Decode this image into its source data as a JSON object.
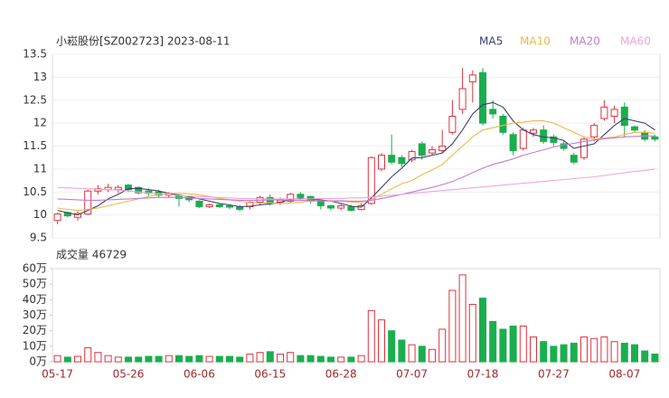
{
  "chart_data": [
    {
      "type": "candlestick",
      "title": "小崧股份[SZ002723] 2023-08-11",
      "categories": [
        "05-17",
        null,
        null,
        null,
        null,
        null,
        null,
        "05-26",
        null,
        null,
        null,
        null,
        null,
        null,
        "06-06",
        null,
        null,
        null,
        null,
        null,
        null,
        "06-15",
        null,
        null,
        null,
        null,
        null,
        null,
        "06-28",
        null,
        null,
        null,
        null,
        null,
        null,
        "07-07",
        null,
        null,
        null,
        null,
        null,
        null,
        "07-18",
        null,
        null,
        null,
        null,
        null,
        null,
        "07-27",
        null,
        null,
        null,
        null,
        null,
        null,
        "08-07",
        null,
        null,
        null
      ],
      "open": [
        9.88,
        10.05,
        9.95,
        10.02,
        10.52,
        10.55,
        10.55,
        10.65,
        10.6,
        10.52,
        10.5,
        10.43,
        10.42,
        10.38,
        10.3,
        10.18,
        10.22,
        10.2,
        10.18,
        10.18,
        10.28,
        10.38,
        10.28,
        10.3,
        10.45,
        10.4,
        10.3,
        10.2,
        10.15,
        10.18,
        10.12,
        10.25,
        11.0,
        11.3,
        11.25,
        11.2,
        11.55,
        11.35,
        11.4,
        11.8,
        12.3,
        12.9,
        13.1,
        12.3,
        12.15,
        11.75,
        11.45,
        11.78,
        11.85,
        11.7,
        11.55,
        11.3,
        11.25,
        11.7,
        12.1,
        12.15,
        12.35,
        11.92,
        11.8,
        11.7
      ],
      "high": [
        10.05,
        10.07,
        10.08,
        10.55,
        10.65,
        10.68,
        10.65,
        10.68,
        10.62,
        10.58,
        10.55,
        10.5,
        10.45,
        10.42,
        10.32,
        10.25,
        10.25,
        10.22,
        10.22,
        10.3,
        10.42,
        10.45,
        10.38,
        10.48,
        10.5,
        10.42,
        10.32,
        10.22,
        10.25,
        10.22,
        10.25,
        11.27,
        11.35,
        11.75,
        11.3,
        11.42,
        11.6,
        11.5,
        11.85,
        12.5,
        13.2,
        13.15,
        13.2,
        12.5,
        12.2,
        11.8,
        11.9,
        11.9,
        11.95,
        11.75,
        11.6,
        11.35,
        11.7,
        12.0,
        12.5,
        12.38,
        12.45,
        11.95,
        11.85,
        11.75
      ],
      "low": [
        9.8,
        9.95,
        9.88,
        10.0,
        10.45,
        10.5,
        10.48,
        10.5,
        10.45,
        10.42,
        10.38,
        10.38,
        10.18,
        10.28,
        10.15,
        10.15,
        10.15,
        10.12,
        10.08,
        10.12,
        10.22,
        10.2,
        10.22,
        10.25,
        10.32,
        10.25,
        10.12,
        10.1,
        10.1,
        10.08,
        10.1,
        10.22,
        10.95,
        11.1,
        11.05,
        11.15,
        11.2,
        11.3,
        11.35,
        11.75,
        12.2,
        12.45,
        11.95,
        12.1,
        11.75,
        11.3,
        11.4,
        11.7,
        11.55,
        11.5,
        11.4,
        11.1,
        11.2,
        11.6,
        12.05,
        12.0,
        11.7,
        11.8,
        11.6,
        11.6
      ],
      "close": [
        10.02,
        9.98,
        10.03,
        10.52,
        10.57,
        10.6,
        10.6,
        10.55,
        10.48,
        10.47,
        10.43,
        10.47,
        10.36,
        10.33,
        10.18,
        10.22,
        10.18,
        10.17,
        10.12,
        10.28,
        10.38,
        10.25,
        10.32,
        10.45,
        10.38,
        10.3,
        10.2,
        10.15,
        10.2,
        10.1,
        10.2,
        11.25,
        11.3,
        11.15,
        11.12,
        11.38,
        11.3,
        11.42,
        11.5,
        12.15,
        12.75,
        13.05,
        12.0,
        12.2,
        11.8,
        11.4,
        11.85,
        11.85,
        11.6,
        11.58,
        11.45,
        11.15,
        11.65,
        11.95,
        12.35,
        12.3,
        11.95,
        11.85,
        11.65,
        11.65
      ],
      "up_color": "#e0323c",
      "down_color": "#1aae4e",
      "series": [
        {
          "name": "MA5",
          "color": "#3a3f6e",
          "values": [
            10.1,
            10.05,
            10.0,
            10.1,
            10.2,
            10.35,
            10.45,
            10.57,
            10.58,
            10.55,
            10.52,
            10.47,
            10.43,
            10.4,
            10.35,
            10.3,
            10.25,
            10.22,
            10.18,
            10.19,
            10.22,
            10.24,
            10.27,
            10.34,
            10.36,
            10.34,
            10.33,
            10.3,
            10.25,
            10.19,
            10.17,
            10.37,
            10.6,
            10.83,
            11.02,
            11.24,
            11.25,
            11.3,
            11.35,
            11.55,
            11.85,
            12.2,
            12.4,
            12.45,
            12.35,
            12.05,
            11.85,
            11.75,
            11.7,
            11.68,
            11.62,
            11.45,
            11.5,
            11.55,
            11.75,
            11.95,
            12.1,
            12.05,
            12.0,
            11.85
          ]
        },
        {
          "name": "MA10",
          "color": "#f0b848",
          "values": [
            10.15,
            10.12,
            10.1,
            10.12,
            10.15,
            10.2,
            10.25,
            10.3,
            10.35,
            10.4,
            10.45,
            10.47,
            10.47,
            10.46,
            10.44,
            10.4,
            10.36,
            10.33,
            10.3,
            10.27,
            10.26,
            10.26,
            10.25,
            10.26,
            10.28,
            10.3,
            10.31,
            10.3,
            10.3,
            10.28,
            10.27,
            10.34,
            10.45,
            10.57,
            10.68,
            10.75,
            10.88,
            10.98,
            11.1,
            11.3,
            11.5,
            11.7,
            11.85,
            11.9,
            11.95,
            12.0,
            12.02,
            12.05,
            12.05,
            12.0,
            11.9,
            11.8,
            11.7,
            11.65,
            11.68,
            11.7,
            11.75,
            11.8,
            11.8,
            11.78
          ]
        },
        {
          "name": "MA20",
          "color": "#c47ad6",
          "values": [
            10.35,
            10.34,
            10.33,
            10.32,
            10.32,
            10.33,
            10.34,
            10.35,
            10.36,
            10.37,
            10.38,
            10.38,
            10.38,
            10.37,
            10.36,
            10.35,
            10.34,
            10.33,
            10.32,
            10.32,
            10.32,
            10.33,
            10.33,
            10.32,
            10.32,
            10.31,
            10.31,
            10.31,
            10.31,
            10.3,
            10.3,
            10.32,
            10.36,
            10.4,
            10.45,
            10.5,
            10.55,
            10.6,
            10.66,
            10.73,
            10.82,
            10.92,
            11.02,
            11.1,
            11.16,
            11.22,
            11.3,
            11.36,
            11.42,
            11.48,
            11.53,
            11.56,
            11.6,
            11.63,
            11.66,
            11.68,
            11.7,
            11.71,
            11.72,
            11.72
          ]
        },
        {
          "name": "MA60",
          "color": "#f2a6d6",
          "values": [
            10.6,
            10.59,
            10.58,
            10.57,
            10.56,
            10.55,
            10.54,
            10.52,
            10.5,
            10.48,
            10.46,
            10.44,
            10.42,
            10.41,
            10.4,
            10.39,
            10.38,
            10.37,
            10.36,
            10.36,
            10.35,
            10.35,
            10.35,
            10.35,
            10.35,
            10.35,
            10.36,
            10.36,
            10.36,
            10.37,
            10.37,
            10.39,
            10.41,
            10.43,
            10.45,
            10.47,
            10.49,
            10.51,
            10.53,
            10.55,
            10.57,
            10.59,
            10.61,
            10.63,
            10.65,
            10.67,
            10.69,
            10.71,
            10.73,
            10.75,
            10.77,
            10.79,
            10.81,
            10.83,
            10.86,
            10.89,
            10.92,
            10.95,
            10.97,
            11.0
          ]
        }
      ],
      "ylim": [
        9.5,
        13.5
      ],
      "yticks": [
        9.5,
        10,
        10.5,
        11,
        11.5,
        12,
        12.5,
        13,
        13.5
      ],
      "grid": true
    },
    {
      "type": "bar",
      "title": "成交量 46729",
      "values": [
        4,
        3,
        3.5,
        9,
        6,
        4,
        3,
        3,
        3,
        3.5,
        3.5,
        4,
        4,
        3.5,
        4,
        3.5,
        3.5,
        3.5,
        3,
        5,
        6,
        6.5,
        5,
        6,
        4,
        4,
        3.5,
        3,
        3,
        3,
        4,
        33,
        27,
        20,
        14,
        11,
        10,
        8,
        21,
        46,
        56,
        37,
        41,
        26,
        21,
        23,
        23,
        16,
        13,
        10,
        11,
        12,
        16,
        15,
        16,
        13,
        12,
        11,
        7,
        5
      ],
      "ylim": [
        0,
        60
      ],
      "yticks": [
        {
          "value": 0,
          "label": "0万"
        },
        {
          "value": 10,
          "label": "10万"
        },
        {
          "value": 20,
          "label": "20万"
        },
        {
          "value": 30,
          "label": "30万"
        },
        {
          "value": 40,
          "label": "40万"
        },
        {
          "value": 50,
          "label": "50万"
        },
        {
          "value": 60,
          "label": "60万"
        }
      ]
    }
  ]
}
